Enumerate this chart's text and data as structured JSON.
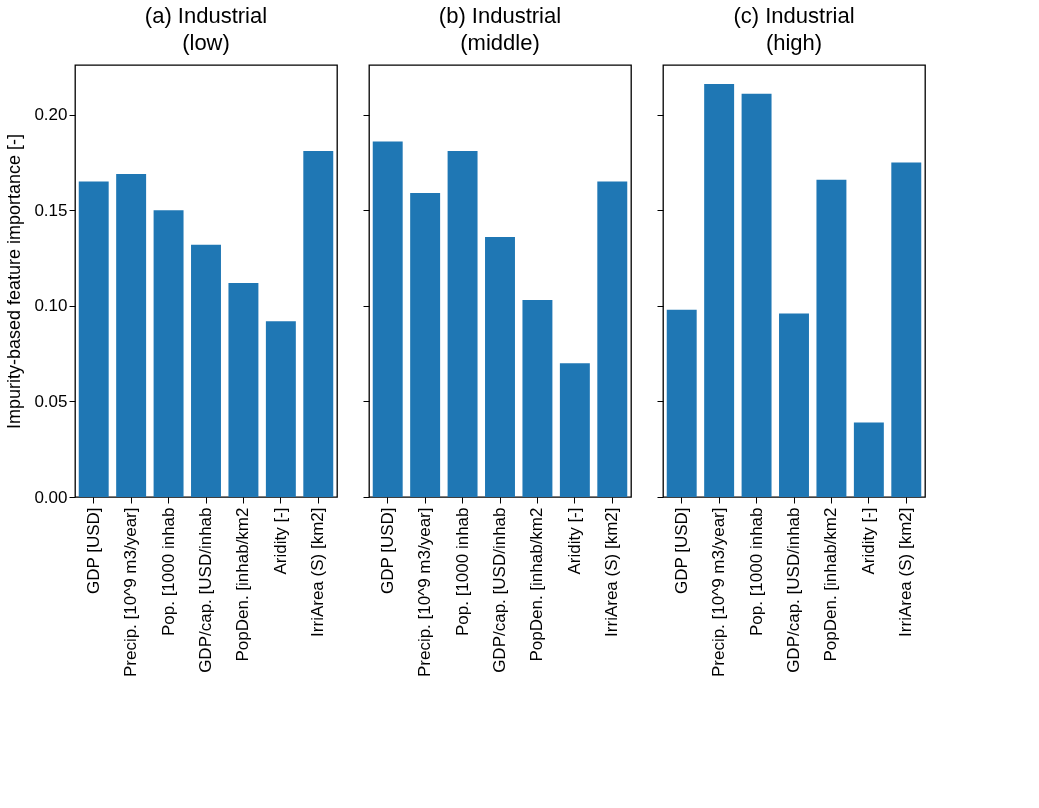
{
  "chart_data": [
    {
      "type": "bar",
      "title": "(a) Industrial\n(low)",
      "ylabel": "Impurity-based feature importance [-]",
      "categories": [
        "GDP [USD]",
        "Precip. [10^9 m3/year]",
        "Pop. [1000 inhab",
        "GDP/cap. [USD/inhab",
        "PopDen. [inhab/km2",
        "Aridity [-]",
        "IrriArea (S) [km2]"
      ],
      "values": [
        0.165,
        0.169,
        0.15,
        0.132,
        0.112,
        0.092,
        0.181
      ],
      "color": "#1f77b4",
      "ylim": [
        0,
        0.226
      ],
      "yticks": [
        {
          "value": 0,
          "label": "0.00"
        },
        0.05,
        {
          "value": 0.1,
          "label": "0.10"
        },
        0.15,
        {
          "value": 0.2,
          "label": "0.20"
        }
      ]
    },
    {
      "type": "bar",
      "title": "(b) Industrial\n(middle)",
      "categories": [
        "GDP [USD]",
        "Precip. [10^9 m3/year]",
        "Pop. [1000 inhab",
        "GDP/cap. [USD/inhab",
        "PopDen. [inhab/km2",
        "Aridity [-]",
        "IrriArea (S) [km2]"
      ],
      "values": [
        0.186,
        0.159,
        0.181,
        0.136,
        0.103,
        0.07,
        0.165
      ],
      "color": "#1f77b4",
      "ylim": [
        0,
        0.226
      ],
      "yticks": [
        {
          "value": 0,
          "label": null
        },
        {
          "value": 0.05,
          "label": null
        },
        {
          "value": 0.1,
          "label": null
        },
        {
          "value": 0.15,
          "label": null
        },
        {
          "value": 0.2,
          "label": null
        }
      ],
      "tick_labels": "x"
    },
    {
      "type": "bar",
      "title": "(c) Industrial\n(high)",
      "categories": [
        "GDP [USD]",
        "Precip. [10^9 m3/year]",
        "Pop. [1000 inhab",
        "GDP/cap. [USD/inhab",
        "PopDen. [inhab/km2",
        "Aridity [-]",
        "IrriArea (S) [km2]"
      ],
      "values": [
        0.098,
        0.216,
        0.211,
        0.096,
        0.166,
        0.039,
        0.175
      ],
      "color": "#1f77b4",
      "ylim": [
        0,
        0.226
      ],
      "yticks": [
        {
          "value": 0,
          "label": null
        },
        {
          "value": 0.05,
          "label": null
        },
        {
          "value": 0.1,
          "label": null
        },
        {
          "value": 0.15,
          "label": null
        },
        {
          "value": 0.2,
          "label": null
        }
      ],
      "tick_labels": "x"
    }
  ]
}
